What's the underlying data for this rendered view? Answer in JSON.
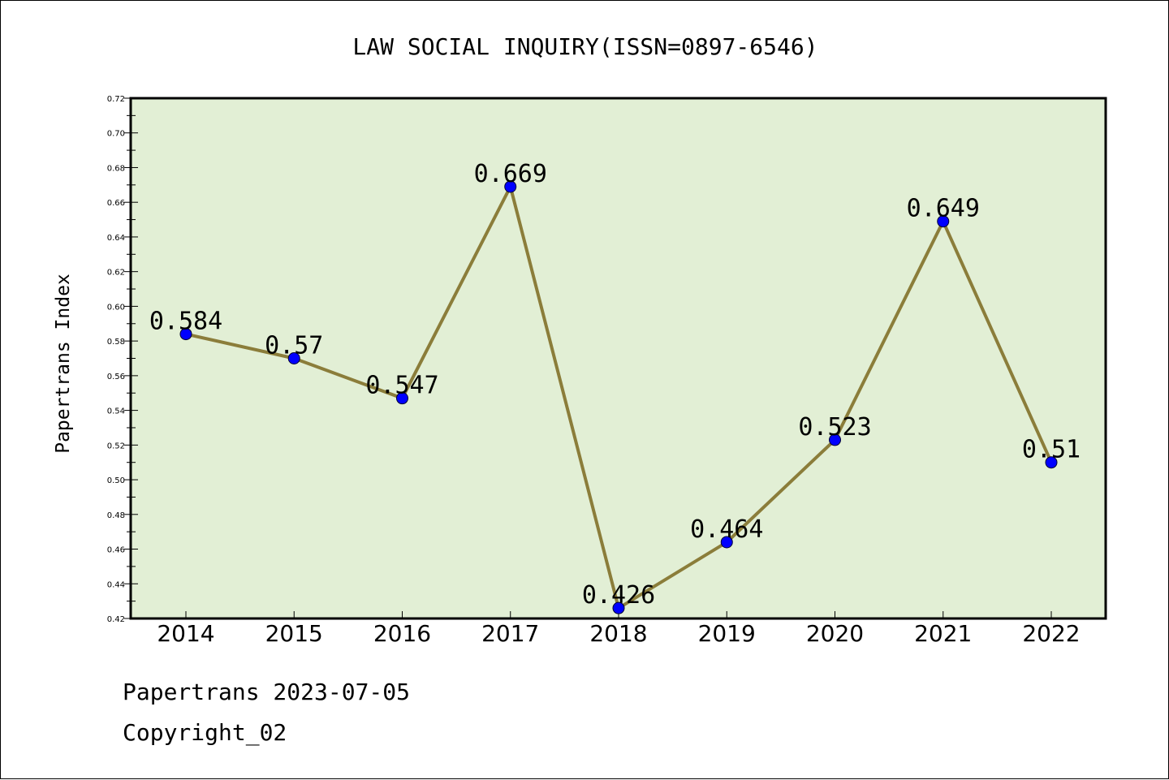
{
  "chart_data": {
    "type": "line",
    "title": "LAW SOCIAL INQUIRY(ISSN=0897-6546)",
    "xlabel": "",
    "ylabel": "Papertrans Index",
    "categories": [
      "2014",
      "2015",
      "2016",
      "2017",
      "2018",
      "2019",
      "2020",
      "2021",
      "2022"
    ],
    "series": [
      {
        "values": [
          0.584,
          0.57,
          0.547,
          0.669,
          0.426,
          0.464,
          0.523,
          0.649,
          0.51
        ],
        "data_labels": [
          "0.584",
          "0.57",
          "0.547",
          "0.669",
          "0.426",
          "0.464",
          "0.523",
          "0.649",
          "0.51"
        ]
      }
    ],
    "ylim": [
      0.42,
      0.72
    ],
    "yticks": [
      "0.42",
      "0.44",
      "0.46",
      "0.48",
      "0.50",
      "0.52",
      "0.54",
      "0.56",
      "0.58",
      "0.60",
      "0.62",
      "0.64",
      "0.66",
      "0.68",
      "0.70",
      "0.72"
    ],
    "grid": false,
    "legend": "none",
    "colors": {
      "plot_background": "#e2efd5",
      "line": "#8b7d3a",
      "marker": "#0000ff"
    }
  },
  "footer": {
    "line1": "Papertrans 2023-07-05",
    "line2": "Copyright_02"
  }
}
